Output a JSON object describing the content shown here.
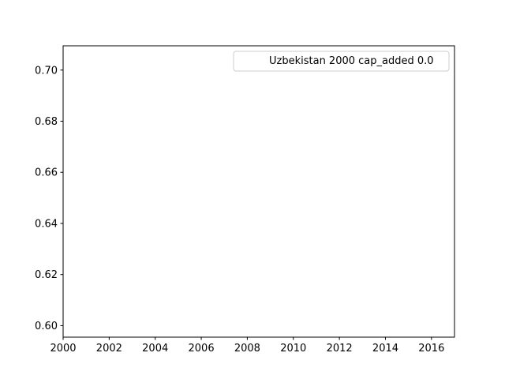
{
  "chart_data": {
    "type": "line",
    "title": "",
    "xlabel": "",
    "ylabel": "",
    "xlim": [
      2000,
      2017
    ],
    "ylim": [
      0.5955,
      0.7095
    ],
    "x_ticks": [
      2000,
      2002,
      2004,
      2006,
      2008,
      2010,
      2012,
      2014,
      2016
    ],
    "y_ticks": [
      0.6,
      0.62,
      0.64,
      0.66,
      0.68,
      0.7
    ],
    "y_tick_labels": [
      "0.60",
      "0.62",
      "0.64",
      "0.66",
      "0.68",
      "0.70"
    ],
    "grid": false,
    "legend_position": "top-right",
    "series": [
      {
        "name": "Uzbekistan 2000 cap_added 0.0",
        "x": [],
        "y": []
      }
    ]
  }
}
